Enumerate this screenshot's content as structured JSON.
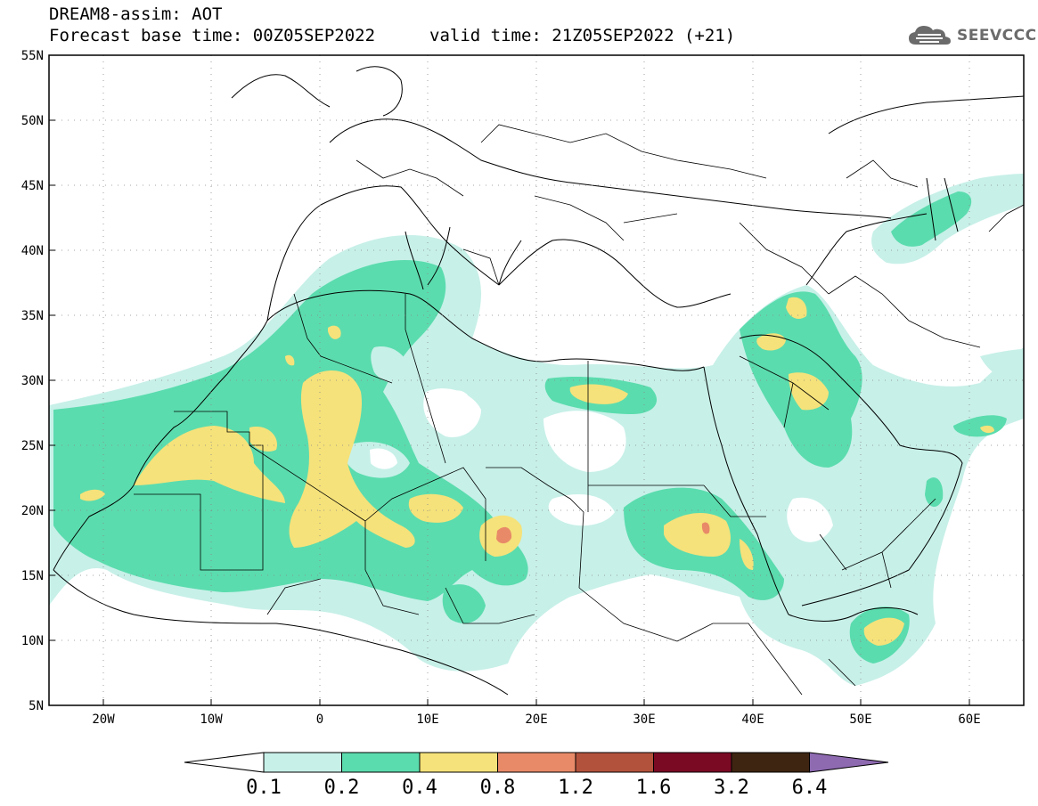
{
  "header": {
    "title": "DREAM8-assim: AOT",
    "forecast_base": "Forecast base time: 00Z05SEP2022",
    "valid_time": "valid time: 21Z05SEP2022 (+21)"
  },
  "logo": {
    "text": "SEEVCCC",
    "icon": "cloud-logo-icon"
  },
  "axes": {
    "lat_labels": [
      "55N",
      "50N",
      "45N",
      "40N",
      "35N",
      "30N",
      "25N",
      "20N",
      "15N",
      "10N",
      "5N"
    ],
    "lon_labels": [
      "20W",
      "10W",
      "0",
      "10E",
      "20E",
      "30E",
      "40E",
      "50E",
      "60E"
    ],
    "lat_range": [
      5,
      55
    ],
    "lon_range": [
      -25,
      65
    ],
    "grid": "dotted"
  },
  "colorbar": {
    "labels": [
      "0.1",
      "0.2",
      "0.4",
      "0.8",
      "1.2",
      "1.6",
      "3.2",
      "6.4"
    ],
    "colors": [
      "#ffffff",
      "#c7f0e8",
      "#5bdcae",
      "#f5e27a",
      "#e88a68",
      "#b3523c",
      "#7a0a24",
      "#3e2512",
      "#8e6ab1"
    ]
  },
  "field_colors": {
    "level_01": "#c7f0e8",
    "level_02": "#5bdcae",
    "level_04": "#f5e27a",
    "level_08": "#e88a68"
  }
}
